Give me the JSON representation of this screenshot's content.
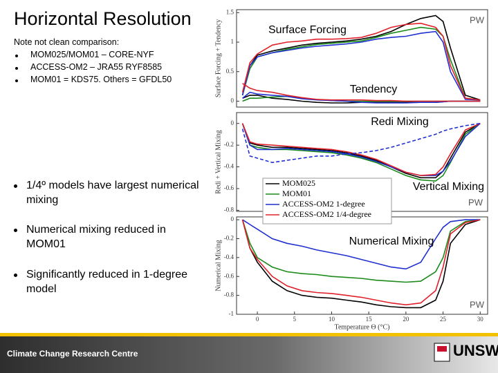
{
  "slide": {
    "title": "Horizontal Resolution",
    "note": "Note not clean comparison:",
    "note_items": [
      "MOM025/MOM01 – CORE-NYF",
      "ACCESS-OM2 – JRA55 RYF8585",
      "MOM01 = KDS75. Others = GFDL50"
    ],
    "bullets": [
      "1/4º models have largest numerical mixing",
      "Numerical mixing reduced in MOM01",
      "Significantly reduced in 1-degree model"
    ],
    "footer": "Climate Change Research Centre",
    "logo": "UNSW"
  },
  "chart_data": [
    {
      "type": "line",
      "ylabel": "Surface Forcing + Tendency",
      "annotations": [
        "Surface Forcing",
        "Tendency",
        "PW"
      ],
      "x": [
        -2,
        -1,
        0,
        2,
        4,
        6,
        8,
        10,
        12,
        14,
        16,
        18,
        20,
        22,
        24,
        25,
        26,
        28,
        30
      ],
      "xlim": [
        -2.8,
        31
      ],
      "ylim": [
        -0.1,
        1.55
      ],
      "yticks": [
        0,
        0.5,
        1,
        1.5
      ],
      "series": [
        {
          "color": "#000000",
          "values": [
            0.1,
            0.6,
            0.78,
            0.85,
            0.9,
            0.95,
            0.98,
            1.0,
            1.02,
            1.05,
            1.1,
            1.18,
            1.3,
            1.4,
            1.45,
            1.35,
            0.9,
            0.1,
            0.02
          ]
        },
        {
          "color": "#1a8a1a",
          "values": [
            0.1,
            0.55,
            0.75,
            0.82,
            0.88,
            0.92,
            0.96,
            0.98,
            1.0,
            1.02,
            1.08,
            1.15,
            1.2,
            1.25,
            1.22,
            1.1,
            0.7,
            0.05,
            0.02
          ]
        },
        {
          "color": "#1f2fd0",
          "values": [
            0.1,
            0.6,
            0.75,
            0.82,
            0.86,
            0.9,
            0.93,
            0.95,
            0.97,
            1.0,
            1.05,
            1.08,
            1.1,
            1.15,
            1.18,
            1.0,
            0.5,
            0.03,
            0.02
          ]
        },
        {
          "color": "#e0202a",
          "values": [
            0.15,
            0.65,
            0.8,
            0.95,
            1.0,
            1.02,
            1.05,
            1.05,
            1.06,
            1.08,
            1.15,
            1.25,
            1.3,
            1.32,
            1.25,
            1.1,
            0.6,
            0.05,
            0.02
          ]
        },
        {
          "color": "#000000",
          "values": [
            0.05,
            0.1,
            0.1,
            0.05,
            0.03,
            0.0,
            -0.02,
            -0.03,
            -0.03,
            -0.02,
            -0.02,
            -0.02,
            -0.02,
            -0.02,
            -0.02,
            -0.01,
            0,
            0,
            0
          ]
        },
        {
          "color": "#1a8a1a",
          "values": [
            0.0,
            0.05,
            0.05,
            0.07,
            0.08,
            0.05,
            0.03,
            0.01,
            0,
            0,
            0,
            0,
            0,
            0,
            0,
            0,
            0,
            0,
            0
          ]
        },
        {
          "color": "#1f2fd0",
          "values": [
            0.05,
            0.15,
            0.12,
            0.1,
            0.08,
            0.04,
            0.02,
            0.01,
            0,
            -0.02,
            -0.03,
            -0.03,
            -0.03,
            -0.02,
            -0.02,
            -0.01,
            0,
            0,
            0
          ]
        },
        {
          "color": "#e0202a",
          "values": [
            0.3,
            0.22,
            0.18,
            0.15,
            0.1,
            0.06,
            0.03,
            0.02,
            0.02,
            0.02,
            0.01,
            0.01,
            0,
            0,
            0,
            0,
            0,
            0,
            0
          ]
        }
      ]
    },
    {
      "type": "line",
      "ylabel": "Redi + Vertical Mixing",
      "annotations": [
        "Redi Mixing",
        "Vertical Mixing",
        "PW"
      ],
      "x": [
        -2,
        -1,
        0,
        2,
        4,
        6,
        8,
        10,
        12,
        14,
        16,
        18,
        20,
        22,
        24,
        25,
        26,
        28,
        30
      ],
      "xlim": [
        -2.8,
        31
      ],
      "ylim": [
        -0.81,
        0.1
      ],
      "yticks": [
        0,
        -0.2,
        -0.4,
        -0.6,
        -0.8
      ],
      "legend": "lower left",
      "series": [
        {
          "name": "MOM025",
          "color": "#000000",
          "values": [
            0,
            -0.18,
            -0.2,
            -0.22,
            -0.22,
            -0.23,
            -0.24,
            -0.25,
            -0.27,
            -0.3,
            -0.34,
            -0.4,
            -0.46,
            -0.5,
            -0.5,
            -0.44,
            -0.32,
            -0.08,
            0.0
          ]
        },
        {
          "name": "MOM01",
          "color": "#1a8a1a",
          "values": [
            0,
            -0.2,
            -0.22,
            -0.24,
            -0.24,
            -0.25,
            -0.26,
            -0.27,
            -0.29,
            -0.32,
            -0.36,
            -0.42,
            -0.48,
            -0.52,
            -0.53,
            -0.48,
            -0.36,
            -0.1,
            0
          ]
        },
        {
          "name": "ACCESS-OM2 1-degree",
          "color": "#1f2fd0",
          "values": [
            0,
            -0.2,
            -0.24,
            -0.24,
            -0.23,
            -0.24,
            -0.25,
            -0.26,
            -0.28,
            -0.31,
            -0.35,
            -0.4,
            -0.45,
            -0.48,
            -0.48,
            -0.44,
            -0.35,
            -0.12,
            0
          ]
        },
        {
          "name": "ACCESS-OM2 1/4-degree",
          "color": "#e0202a",
          "values": [
            0,
            -0.17,
            -0.19,
            -0.2,
            -0.21,
            -0.22,
            -0.23,
            -0.24,
            -0.26,
            -0.29,
            -0.33,
            -0.39,
            -0.45,
            -0.48,
            -0.47,
            -0.4,
            -0.28,
            -0.06,
            0
          ]
        },
        {
          "color": "#1f2fd0",
          "style": "dashed",
          "values": [
            -0.05,
            -0.3,
            -0.32,
            -0.36,
            -0.34,
            -0.32,
            -0.3,
            -0.3,
            -0.28,
            -0.27,
            -0.25,
            -0.22,
            -0.18,
            -0.14,
            -0.1,
            -0.07,
            -0.05,
            -0.02,
            0.0
          ]
        }
      ]
    },
    {
      "type": "line",
      "ylabel": "Numerical Mixing",
      "xlabel": "Temperature Θ (°C)",
      "annotations": [
        "Numerical Mixing",
        "PW"
      ],
      "x": [
        -2,
        -1,
        0,
        2,
        4,
        6,
        8,
        10,
        12,
        14,
        16,
        18,
        20,
        22,
        24,
        25,
        26,
        28,
        30
      ],
      "xlim": [
        -2.8,
        31
      ],
      "xticks": [
        0,
        5,
        10,
        15,
        20,
        25,
        30
      ],
      "ylim": [
        -1,
        0.03
      ],
      "yticks": [
        0,
        -0.2,
        -0.4,
        -0.6,
        -0.8,
        -1
      ],
      "series": [
        {
          "color": "#000000",
          "values": [
            0,
            -0.3,
            -0.45,
            -0.65,
            -0.75,
            -0.8,
            -0.82,
            -0.83,
            -0.85,
            -0.87,
            -0.9,
            -0.92,
            -0.93,
            -0.93,
            -0.85,
            -0.65,
            -0.25,
            -0.05,
            0
          ]
        },
        {
          "color": "#1a8a1a",
          "values": [
            0,
            -0.25,
            -0.4,
            -0.5,
            -0.55,
            -0.57,
            -0.58,
            -0.6,
            -0.61,
            -0.62,
            -0.64,
            -0.65,
            -0.66,
            -0.65,
            -0.55,
            -0.4,
            -0.12,
            -0.02,
            0
          ]
        },
        {
          "color": "#1f2fd0",
          "values": [
            0,
            -0.05,
            -0.1,
            -0.2,
            -0.25,
            -0.28,
            -0.32,
            -0.35,
            -0.38,
            -0.42,
            -0.46,
            -0.5,
            -0.52,
            -0.45,
            -0.2,
            -0.08,
            -0.02,
            0,
            0
          ]
        },
        {
          "color": "#e0202a",
          "values": [
            0,
            -0.3,
            -0.42,
            -0.6,
            -0.7,
            -0.75,
            -0.77,
            -0.78,
            -0.8,
            -0.82,
            -0.85,
            -0.88,
            -0.9,
            -0.88,
            -0.75,
            -0.5,
            -0.15,
            -0.03,
            0
          ]
        }
      ]
    }
  ]
}
